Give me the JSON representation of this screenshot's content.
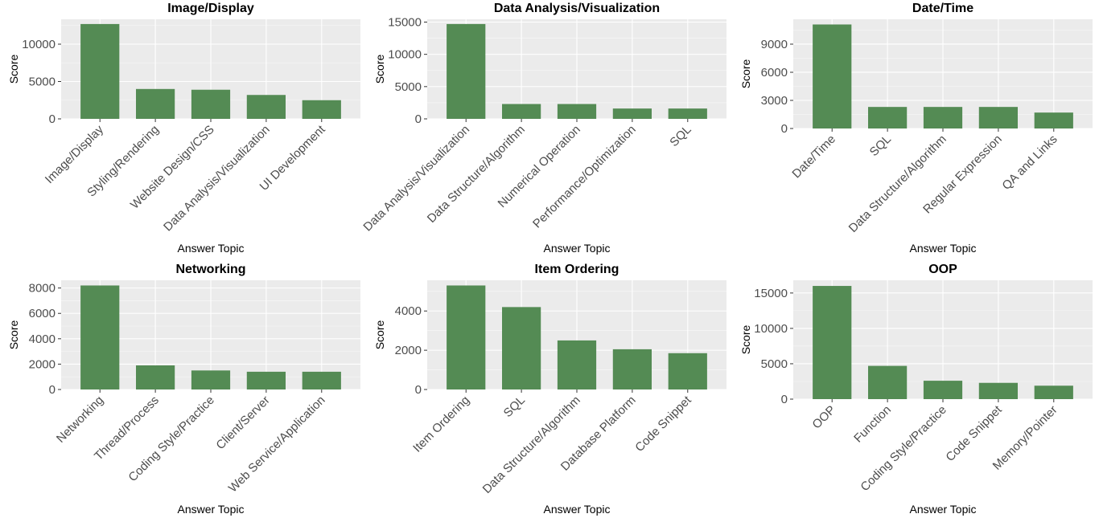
{
  "figure": {
    "bar_color": "#548b54",
    "panel_background": "#ebebeb",
    "grid_major_color": "#ffffff",
    "tick_color": "#333333"
  },
  "chart_data": [
    {
      "type": "bar",
      "title": "Image/Display",
      "xlabel": "Answer Topic",
      "ylabel": "Score",
      "categories": [
        "Image/Display",
        "Styling/Rendering",
        "Website Design/CSS",
        "Data Analysis/Visualization",
        "UI Development"
      ],
      "values": [
        12700,
        4000,
        3900,
        3200,
        2500
      ],
      "ylim": [
        0,
        13335
      ],
      "yticks": [
        0,
        5000,
        10000
      ],
      "grid": true
    },
    {
      "type": "bar",
      "title": "Data Analysis/Visualization",
      "xlabel": "Answer Topic",
      "ylabel": "Score",
      "categories": [
        "Data Analysis/Visualization",
        "Data Structure/Algorithm",
        "Numerical Operation",
        "Performance/Optimization",
        "SQL"
      ],
      "values": [
        14700,
        2300,
        2300,
        1600,
        1600
      ],
      "ylim": [
        0,
        15435
      ],
      "yticks": [
        0,
        5000,
        10000,
        15000
      ],
      "grid": true
    },
    {
      "type": "bar",
      "title": "Date/Time",
      "xlabel": "Answer Topic",
      "ylabel": "Score",
      "categories": [
        "Date/Time",
        "SQL",
        "Data Structure/Algorithm",
        "Regular Expression",
        "QA and Links"
      ],
      "values": [
        11100,
        2300,
        2300,
        2300,
        1700
      ],
      "ylim": [
        0,
        11655
      ],
      "yticks": [
        0,
        3000,
        6000,
        9000
      ],
      "grid": true
    },
    {
      "type": "bar",
      "title": "Networking",
      "xlabel": "Answer Topic",
      "ylabel": "Score",
      "categories": [
        "Networking",
        "Thread/Process",
        "Coding Style/Practice",
        "Client/Server",
        "Web Service/Application"
      ],
      "values": [
        8200,
        1900,
        1500,
        1400,
        1400
      ],
      "ylim": [
        0,
        8610
      ],
      "yticks": [
        0,
        2000,
        4000,
        6000,
        8000
      ],
      "grid": true
    },
    {
      "type": "bar",
      "title": "Item Ordering",
      "xlabel": "Answer Topic",
      "ylabel": "Score",
      "categories": [
        "Item Ordering",
        "SQL",
        "Data Structure/Algorithm",
        "Database Platform",
        "Code Snippet"
      ],
      "values": [
        5300,
        4200,
        2500,
        2050,
        1850
      ],
      "ylim": [
        0,
        5565
      ],
      "yticks": [
        0,
        2000,
        4000
      ],
      "grid": true
    },
    {
      "type": "bar",
      "title": "OOP",
      "xlabel": "Answer Topic",
      "ylabel": "Score",
      "categories": [
        "OOP",
        "Function",
        "Coding Style/Practice",
        "Code Snippet",
        "Memory/Pointer"
      ],
      "values": [
        16000,
        4700,
        2600,
        2300,
        1900
      ],
      "ylim": [
        0,
        16800
      ],
      "yticks": [
        0,
        5000,
        10000,
        15000
      ],
      "grid": true
    }
  ]
}
